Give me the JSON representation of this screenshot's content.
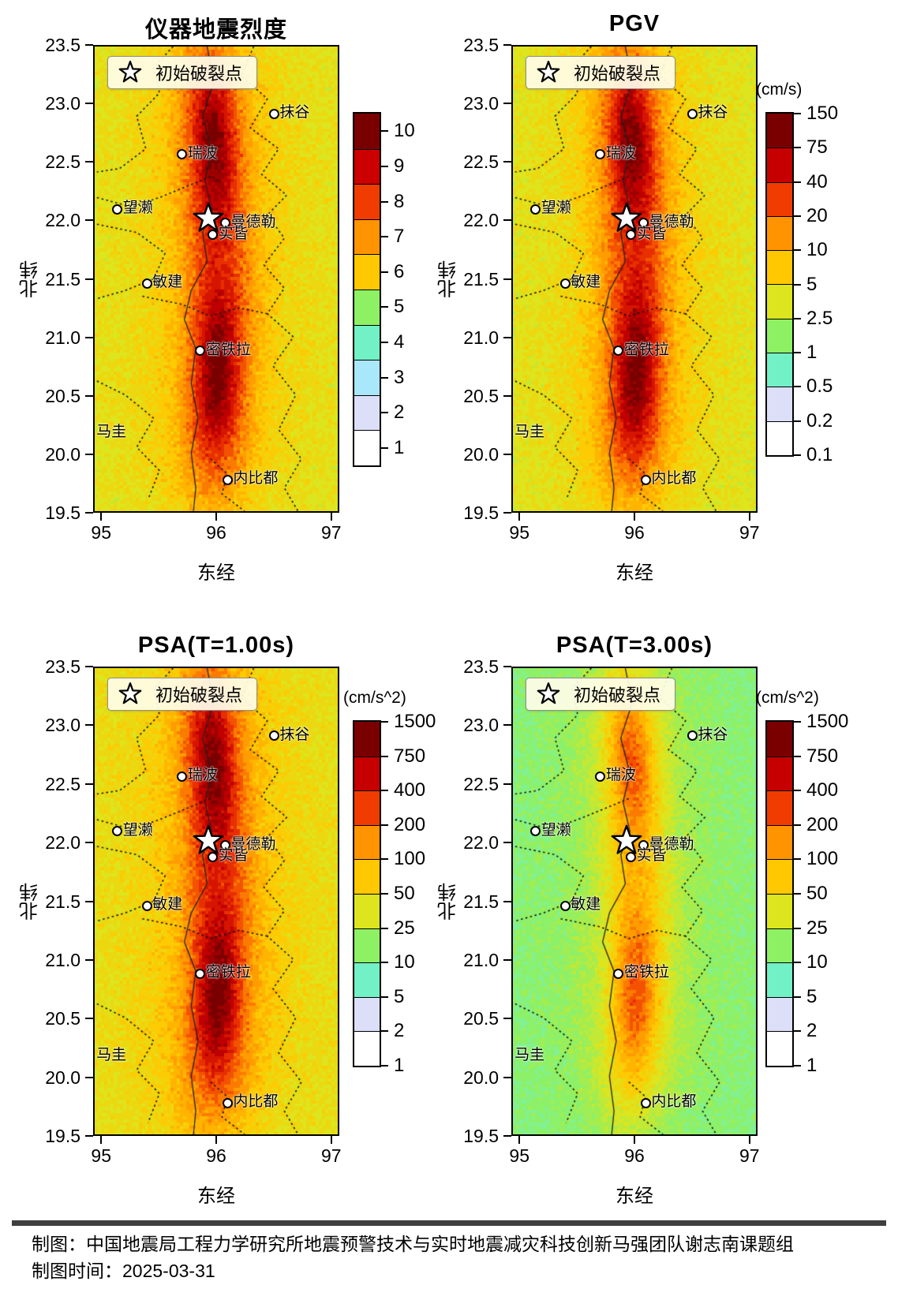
{
  "figure": {
    "caption_line1": "制图：中国地震局工程力学研究所地震预警技术与实时地震减灾科技创新马强团队谢志南课题组",
    "caption_line2": "制图时间：2025-03-31",
    "rule_color": "#3f3f3f",
    "background": "#ffffff"
  },
  "cities_all_panels": [
    {
      "name": "抹谷",
      "lon": 96.51,
      "lat": 22.92,
      "marker": true
    },
    {
      "name": "瑞波",
      "lon": 95.7,
      "lat": 22.57,
      "marker": true
    },
    {
      "name": "望濑",
      "lon": 95.13,
      "lat": 22.1,
      "marker": true
    },
    {
      "name": "曼德勒",
      "lon": 96.08,
      "lat": 21.98,
      "marker": true
    },
    {
      "name": "实皆",
      "lon": 95.97,
      "lat": 21.88,
      "marker": true
    },
    {
      "name": "敏建",
      "lon": 95.39,
      "lat": 21.46,
      "marker": true
    },
    {
      "name": "密铁拉",
      "lon": 95.86,
      "lat": 20.88,
      "marker": true
    },
    {
      "name": "马圭",
      "lon": 95.0,
      "lat": 20.17,
      "marker": false
    },
    {
      "name": "内比都",
      "lon": 96.1,
      "lat": 19.77,
      "marker": true
    }
  ],
  "chart_data": [
    {
      "type": "heatmap",
      "title": "仪器地震烈度",
      "xlabel": "东经",
      "ylabel": "北纬",
      "x_ticks": [
        "95",
        "96",
        "97"
      ],
      "y_ticks": [
        "23.5",
        "23.0",
        "22.5",
        "22.0",
        "21.5",
        "21.0",
        "20.5",
        "20.0",
        "19.5"
      ],
      "lon_range": [
        94.93,
        97.07
      ],
      "lat_range": [
        19.5,
        23.5
      ],
      "legend_label": "初始破裂点",
      "epicenter": {
        "lon": 95.93,
        "lat": 22.02
      },
      "colorbar": {
        "unit": "",
        "tick_align": "center",
        "ticks": [
          "10",
          "9",
          "8",
          "7",
          "6",
          "5",
          "4",
          "3",
          "2",
          "1"
        ],
        "colors": [
          "#7a0000",
          "#cc0000",
          "#f03c00",
          "#ff9400",
          "#ffc800",
          "#8ef163",
          "#72f0c6",
          "#a9e7fb",
          "#dcdff7",
          "#ffffff"
        ]
      },
      "style": {
        "pos_base": 0.5,
        "pos_gain": 0.5
      }
    },
    {
      "type": "heatmap",
      "title": "PGV",
      "xlabel": "东经",
      "ylabel": "北纬",
      "x_ticks": [
        "95",
        "96",
        "97"
      ],
      "y_ticks": [
        "23.5",
        "23.0",
        "22.5",
        "22.0",
        "21.5",
        "21.0",
        "20.5",
        "20.0",
        "19.5"
      ],
      "lon_range": [
        94.93,
        97.07
      ],
      "lat_range": [
        19.5,
        23.5
      ],
      "legend_label": "初始破裂点",
      "epicenter": {
        "lon": 95.93,
        "lat": 22.02
      },
      "colorbar": {
        "unit": "(cm/s)",
        "tick_align": "boundary",
        "ticks": [
          "150",
          "75",
          "40",
          "20",
          "10",
          "5",
          "2.5",
          "1",
          "0.5",
          "0.2",
          "0.1"
        ],
        "colors": [
          "#7a0000",
          "#c60000",
          "#f03c00",
          "#ff9400",
          "#ffc800",
          "#dce51e",
          "#8ef163",
          "#72f0c6",
          "#dcdff7",
          "#ffffff"
        ]
      },
      "style": {
        "pos_base": 0.49,
        "pos_gain": 0.51
      }
    },
    {
      "type": "heatmap",
      "title": "PSA(T=1.00s)",
      "xlabel": "东经",
      "ylabel": "北纬",
      "x_ticks": [
        "95",
        "96",
        "97"
      ],
      "y_ticks": [
        "23.5",
        "23.0",
        "22.5",
        "22.0",
        "21.5",
        "21.0",
        "20.5",
        "20.0",
        "19.5"
      ],
      "lon_range": [
        94.93,
        97.07
      ],
      "lat_range": [
        19.5,
        23.5
      ],
      "legend_label": "初始破裂点",
      "epicenter": {
        "lon": 95.93,
        "lat": 22.02
      },
      "colorbar": {
        "unit": "(cm/s^2)",
        "tick_align": "boundary",
        "ticks": [
          "1500",
          "750",
          "400",
          "200",
          "100",
          "50",
          "25",
          "10",
          "5",
          "2",
          "1"
        ],
        "colors": [
          "#7a0000",
          "#c60000",
          "#f03c00",
          "#ff9400",
          "#ffc800",
          "#dce51e",
          "#8ef163",
          "#72f0c6",
          "#dcdff7",
          "#ffffff"
        ]
      },
      "style": {
        "pos_base": 0.51,
        "pos_gain": 0.49
      }
    },
    {
      "type": "heatmap",
      "title": "PSA(T=3.00s)",
      "xlabel": "东经",
      "ylabel": "北纬",
      "x_ticks": [
        "95",
        "96",
        "97"
      ],
      "y_ticks": [
        "23.5",
        "23.0",
        "22.5",
        "22.0",
        "21.5",
        "21.0",
        "20.5",
        "20.0",
        "19.5"
      ],
      "lon_range": [
        94.93,
        97.07
      ],
      "lat_range": [
        19.5,
        23.5
      ],
      "legend_label": "初始破裂点",
      "epicenter": {
        "lon": 95.93,
        "lat": 22.02
      },
      "colorbar": {
        "unit": "(cm/s^2)",
        "tick_align": "boundary",
        "ticks": [
          "1500",
          "750",
          "400",
          "200",
          "100",
          "50",
          "25",
          "10",
          "5",
          "2",
          "1"
        ],
        "colors": [
          "#7a0000",
          "#c60000",
          "#f03c00",
          "#ff9400",
          "#ffc800",
          "#dce51e",
          "#8ef163",
          "#72f0c6",
          "#dcdff7",
          "#ffffff"
        ]
      },
      "style": {
        "pos_base": 0.33,
        "pos_gain": 0.44
      }
    }
  ]
}
